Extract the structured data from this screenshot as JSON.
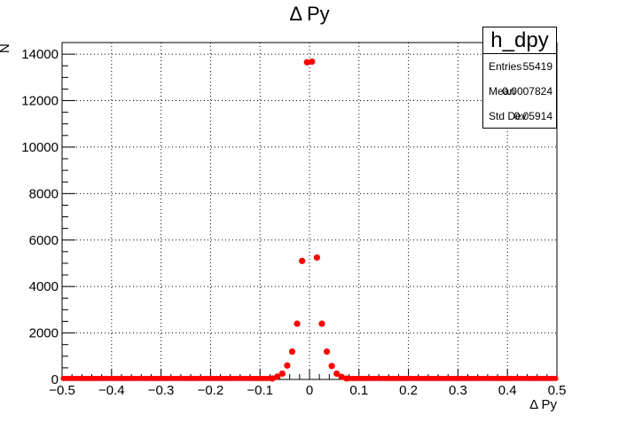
{
  "chart_data": {
    "type": "scatter",
    "title": "Δ Py",
    "xlabel": "Δ Py",
    "ylabel": "N",
    "xlim": [
      -0.5,
      0.5
    ],
    "ylim": [
      0,
      14500
    ],
    "grid": true,
    "x_ticks": [
      -0.5,
      -0.4,
      -0.3,
      -0.2,
      -0.1,
      0,
      0.1,
      0.2,
      0.3,
      0.4,
      0.5
    ],
    "x_tick_labels": [
      "−0.5",
      "−0.4",
      "−0.3",
      "−0.2",
      "−0.1",
      "0",
      "0.1",
      "0.2",
      "0.3",
      "0.4",
      "0.5"
    ],
    "y_ticks": [
      0,
      2000,
      4000,
      6000,
      8000,
      10000,
      12000,
      14000
    ],
    "y_tick_labels": [
      "0",
      "2000",
      "4000",
      "6000",
      "8000",
      "10000",
      "12000",
      "14000"
    ],
    "marker_color": "#ff0000",
    "series": [
      {
        "x": [
          -0.075,
          -0.065,
          -0.055,
          -0.045,
          -0.035,
          -0.025,
          -0.015,
          -0.005,
          0.005,
          0.015,
          0.025,
          0.035,
          0.045,
          0.055,
          0.065,
          0.075
        ],
        "y": [
          40,
          120,
          250,
          600,
          1200,
          2400,
          5100,
          13650,
          13680,
          5250,
          2400,
          1200,
          580,
          250,
          110,
          40
        ]
      }
    ],
    "baseline_y": 5,
    "stats_box": {
      "title": "h_dpy",
      "entries_label": "Entries",
      "entries": "55419",
      "mean_label": "Mean",
      "mean": "0.0007824",
      "stddev_label": "Std Dev",
      "stddev": "0.05914"
    }
  }
}
